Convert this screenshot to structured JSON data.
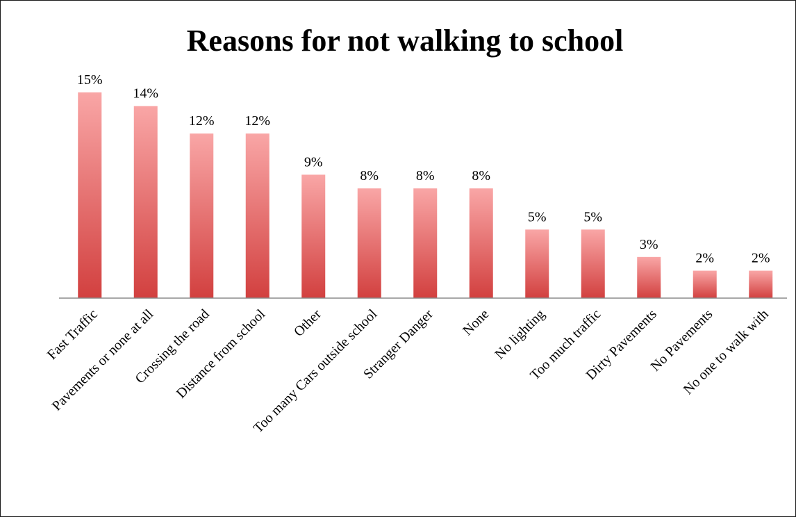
{
  "chart_data": {
    "type": "bar",
    "title": "Reasons for not walking to school",
    "xlabel": "",
    "ylabel": "",
    "categories": [
      "Fast Traffic",
      "Pavements or none at all",
      "Crossing the road",
      "Distance from school",
      "Other",
      "Too many Cars outside school",
      "Stranger Danger",
      "None",
      "No lighting",
      "Too much traffic",
      "Dirty Pavements",
      "No Pavements",
      "No one to walk with"
    ],
    "values": [
      15,
      14,
      12,
      12,
      9,
      8,
      8,
      8,
      5,
      5,
      3,
      2,
      2
    ],
    "data_labels": [
      "15%",
      "14%",
      "12%",
      "12%",
      "9%",
      "8%",
      "8%",
      "8%",
      "5%",
      "5%",
      "3%",
      "2%",
      "2%"
    ],
    "value_unit": "%",
    "ylim": [
      0,
      15
    ],
    "grid": false,
    "legend": "none",
    "colors": {
      "bar_top": "#f9a6a6",
      "bar_bottom": "#d2403f",
      "axis": "#8c8c8c"
    }
  }
}
